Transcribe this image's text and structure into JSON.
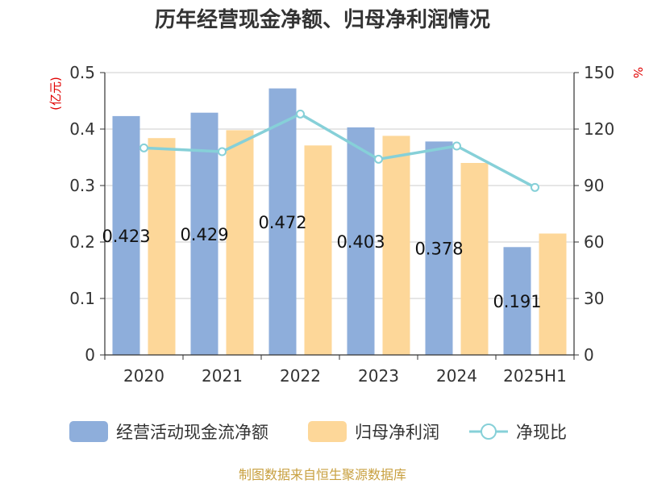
{
  "chart_data": {
    "type": "bar",
    "title": "历年经营现金净额、归母净利润情况",
    "categories": [
      "2020",
      "2021",
      "2022",
      "2023",
      "2024",
      "2025H1"
    ],
    "series": [
      {
        "name": "经营活动现金流净额",
        "type": "bar",
        "axis": "left",
        "values": [
          0.423,
          0.429,
          0.472,
          0.403,
          0.378,
          0.191
        ],
        "data_labels": [
          "0.423",
          "0.429",
          "0.472",
          "0.403",
          "0.378",
          "0.191"
        ],
        "color": "#8eaedb"
      },
      {
        "name": "归母净利润",
        "type": "bar",
        "axis": "left",
        "values": [
          0.384,
          0.398,
          0.371,
          0.388,
          0.34,
          0.215
        ],
        "color": "#fdd799"
      },
      {
        "name": "净现比",
        "type": "line",
        "axis": "right",
        "values": [
          110,
          108,
          128,
          104,
          111,
          89
        ],
        "color": "#86d0d8"
      }
    ],
    "y_left": {
      "unit": "(亿元)",
      "min": 0,
      "max": 0.5,
      "ticks": [
        "0",
        "0.1",
        "0.2",
        "0.3",
        "0.4",
        "0.5"
      ]
    },
    "y_right": {
      "unit": "%",
      "min": 0,
      "max": 150,
      "ticks": [
        "0",
        "30",
        "60",
        "90",
        "120",
        "150"
      ]
    },
    "grid": true,
    "legend_position": "bottom"
  },
  "source": "制图数据来自恒生聚源数据库"
}
